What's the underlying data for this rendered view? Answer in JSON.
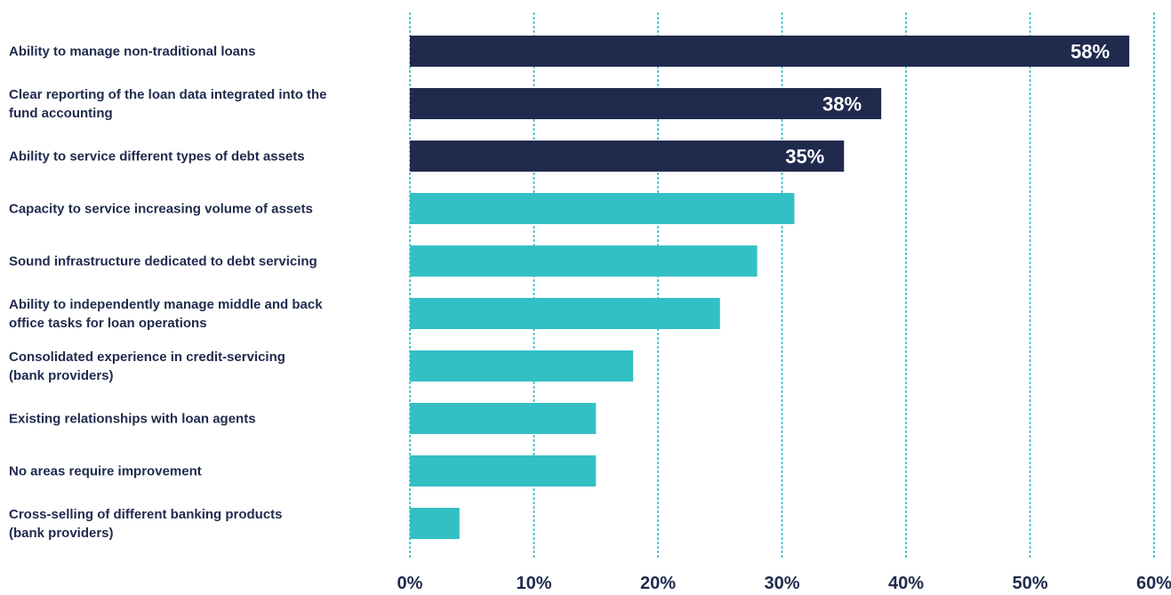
{
  "chart_data": {
    "type": "bar",
    "orientation": "horizontal",
    "categories": [
      [
        "Ability to manage non-traditional loans"
      ],
      [
        "Clear reporting of the loan data integrated into the",
        "fund accounting"
      ],
      [
        "Ability to service different types of debt assets"
      ],
      [
        "Capacity to service increasing volume of assets"
      ],
      [
        "Sound infrastructure dedicated to debt servicing"
      ],
      [
        "Ability to independently manage middle and back",
        "office tasks for loan operations"
      ],
      [
        "Consolidated experience in credit-servicing",
        "(bank providers)"
      ],
      [
        "Existing relationships with loan agents"
      ],
      [
        "No areas require improvement"
      ],
      [
        "Cross-selling of different banking products",
        "(bank providers)"
      ]
    ],
    "values": [
      58,
      38,
      35,
      31,
      28,
      25,
      18,
      15,
      15,
      4
    ],
    "data_labels": [
      "58%",
      "38%",
      "35%",
      "",
      "",
      "",
      "",
      "",
      "",
      ""
    ],
    "highlighted": [
      true,
      true,
      true,
      false,
      false,
      false,
      false,
      false,
      false,
      false
    ],
    "xlim": [
      0,
      60
    ],
    "xticks": [
      0,
      10,
      20,
      30,
      40,
      50,
      60
    ],
    "xtick_labels": [
      "0%",
      "10%",
      "20%",
      "30%",
      "40%",
      "50%",
      "60%"
    ],
    "grid": "vertical-dotted",
    "legend": "none",
    "colors": {
      "highlight": "#1f2a4d",
      "normal": "#33c0c5",
      "grid": "#33c0c5",
      "text": "#1f2a4d",
      "data_label": "#ffffff"
    }
  }
}
